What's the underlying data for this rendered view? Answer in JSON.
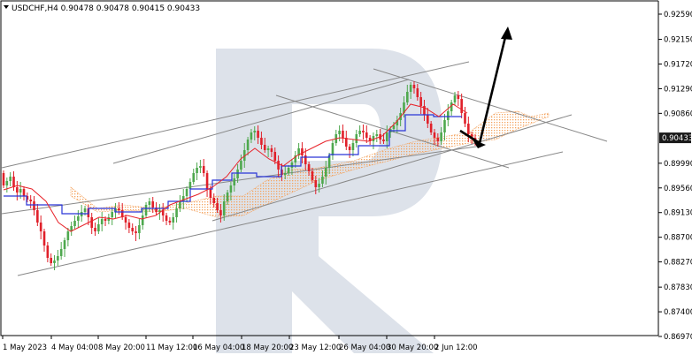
{
  "header": {
    "menu_icon": "triangle-down-icon",
    "text": "USDCHF,H4  0.90478 0.90478 0.90415 0.90433"
  },
  "price_axis": {
    "labels": [
      "0.92590",
      "0.92150",
      "0.91720",
      "0.91290",
      "0.90860",
      "0.90433",
      "0.89990",
      "0.89560",
      "0.89130",
      "0.88700",
      "0.88270",
      "0.87830",
      "0.87400",
      "0.86970"
    ],
    "current_price": "0.90433",
    "current_price_badge_color": "#1a1a1a"
  },
  "time_axis": {
    "labels": [
      "1 May 2023",
      "4 May 04:00",
      "8 May 20:00",
      "11 May 12:00",
      "16 May 04:00",
      "18 May 20:00",
      "23 May 12:00",
      "26 May 04:00",
      "30 May 20:00",
      "2 Jun 12:00"
    ]
  },
  "colors": {
    "bull": "#4ea84e",
    "bear": "#e0202a",
    "tenkan": "#e8232a",
    "kijun": "#2a35d8",
    "cloud": "#f4a460",
    "trendline": "#888888",
    "arrow": "#000000",
    "watermark": "#d8dde6"
  },
  "watermark_icon": "broker-logo-r-icon"
}
